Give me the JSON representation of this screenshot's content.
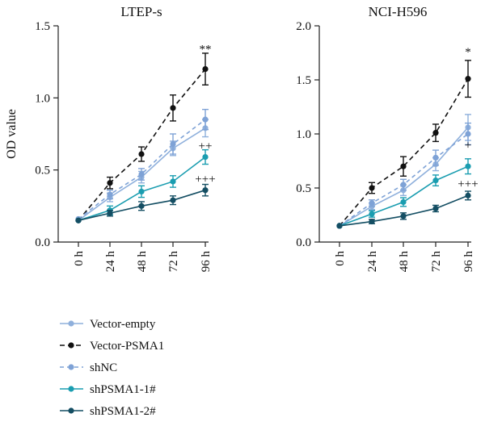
{
  "chart_data": [
    {
      "type": "line",
      "title": "LTEP-s",
      "ylabel": "OD value",
      "xlabel": "",
      "ylim": [
        0,
        1.5
      ],
      "yticks": [
        "0.0",
        "0.5",
        "1.0",
        "1.5"
      ],
      "categories": [
        "0 h",
        "24 h",
        "48 h",
        "72 h",
        "96 h"
      ],
      "series": [
        {
          "name": "Vector-empty",
          "values": [
            0.15,
            0.31,
            0.45,
            0.65,
            0.79
          ],
          "errors": [
            0.01,
            0.03,
            0.04,
            0.05,
            0.06
          ]
        },
        {
          "name": "Vector-PSMA1",
          "values": [
            0.15,
            0.41,
            0.61,
            0.93,
            1.2
          ],
          "errors": [
            0.01,
            0.04,
            0.05,
            0.09,
            0.11
          ]
        },
        {
          "name": "shNC",
          "values": [
            0.16,
            0.33,
            0.47,
            0.68,
            0.85
          ],
          "errors": [
            0.01,
            0.03,
            0.04,
            0.07,
            0.07
          ]
        },
        {
          "name": "shPSMA1-1#",
          "values": [
            0.15,
            0.22,
            0.35,
            0.42,
            0.59
          ],
          "errors": [
            0.01,
            0.03,
            0.04,
            0.04,
            0.05
          ]
        },
        {
          "name": "shPSMA1-2#",
          "values": [
            0.15,
            0.2,
            0.25,
            0.29,
            0.36
          ],
          "errors": [
            0.01,
            0.02,
            0.03,
            0.03,
            0.04
          ]
        }
      ],
      "annotations": [
        {
          "text": "**",
          "x": "96 h",
          "y": 1.34
        },
        {
          "text": "++",
          "x": "96 h",
          "y": 0.67
        },
        {
          "text": "+++",
          "x": "96 h",
          "y": 0.44
        }
      ]
    },
    {
      "type": "line",
      "title": "NCI-H596",
      "ylabel": "",
      "xlabel": "",
      "ylim": [
        0,
        2.0
      ],
      "yticks": [
        "0.0",
        "0.5",
        "1.0",
        "1.5",
        "2.0"
      ],
      "categories": [
        "0 h",
        "24 h",
        "48 h",
        "72 h",
        "96 h"
      ],
      "series": [
        {
          "name": "Vector-empty",
          "values": [
            0.15,
            0.33,
            0.48,
            0.72,
            1.06
          ],
          "errors": [
            0.01,
            0.03,
            0.05,
            0.06,
            0.12
          ]
        },
        {
          "name": "Vector-PSMA1",
          "values": [
            0.15,
            0.5,
            0.7,
            1.01,
            1.51
          ],
          "errors": [
            0.01,
            0.05,
            0.09,
            0.08,
            0.17
          ]
        },
        {
          "name": "shNC",
          "values": [
            0.15,
            0.36,
            0.53,
            0.78,
            1.0
          ],
          "errors": [
            0.01,
            0.03,
            0.05,
            0.07,
            0.1
          ]
        },
        {
          "name": "shPSMA1-1#",
          "values": [
            0.15,
            0.26,
            0.37,
            0.57,
            0.7
          ],
          "errors": [
            0.01,
            0.03,
            0.04,
            0.05,
            0.07
          ]
        },
        {
          "name": "shPSMA1-2#",
          "values": [
            0.15,
            0.19,
            0.24,
            0.31,
            0.43
          ],
          "errors": [
            0.01,
            0.02,
            0.03,
            0.03,
            0.04
          ]
        }
      ],
      "annotations": [
        {
          "text": "*",
          "x": "96 h",
          "y": 1.76
        },
        {
          "text": "+",
          "x": "96 h",
          "y": 0.9
        },
        {
          "text": "+++",
          "x": "96 h",
          "y": 0.54
        }
      ]
    }
  ],
  "styles": {
    "Vector-empty": {
      "color": "#8fb0dc",
      "dash": ""
    },
    "Vector-PSMA1": {
      "color": "#111111",
      "dash": "6,4"
    },
    "shNC": {
      "color": "#7ea2d6",
      "dash": "5,4"
    },
    "shPSMA1-1#": {
      "color": "#1a9db0",
      "dash": ""
    },
    "shPSMA1-2#": {
      "color": "#144e63",
      "dash": ""
    }
  },
  "legend": [
    "Vector-empty",
    "Vector-PSMA1",
    "shNC",
    "shPSMA1-1#",
    "shPSMA1-2#"
  ]
}
